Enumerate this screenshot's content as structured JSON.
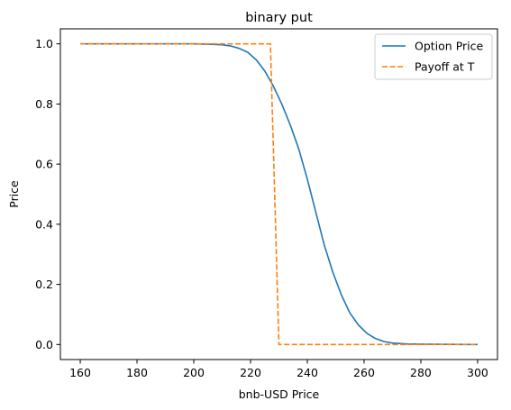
{
  "chart_data": {
    "type": "line",
    "title": "binary put",
    "xlabel": "bnb-USD Price",
    "ylabel": "Price",
    "xlim": [
      153,
      307
    ],
    "ylim": [
      -0.05,
      1.05
    ],
    "xticks": [
      160,
      180,
      200,
      220,
      240,
      260,
      280,
      300
    ],
    "yticks": [
      0.0,
      0.2,
      0.4,
      0.6,
      0.8,
      1.0
    ],
    "xtick_labels": [
      "160",
      "180",
      "200",
      "220",
      "240",
      "260",
      "280",
      "300"
    ],
    "ytick_labels": [
      "0.0",
      "0.2",
      "0.4",
      "0.6",
      "0.8",
      "1.0"
    ],
    "grid": false,
    "legend_position": "top-right",
    "series": [
      {
        "name": "Option Price",
        "color": "#1f77b4",
        "dash": "solid",
        "x": [
          160,
          180,
          200,
          205,
          210,
          213,
          216,
          219,
          222,
          225,
          228,
          231,
          234,
          237,
          240,
          243,
          246,
          249,
          252,
          255,
          258,
          261,
          264,
          267,
          270,
          275,
          280,
          300
        ],
        "y": [
          1.0,
          1.0,
          1.0,
          0.999,
          0.997,
          0.993,
          0.985,
          0.972,
          0.947,
          0.91,
          0.86,
          0.8,
          0.73,
          0.65,
          0.55,
          0.44,
          0.33,
          0.24,
          0.165,
          0.105,
          0.065,
          0.037,
          0.02,
          0.01,
          0.005,
          0.002,
          0.001,
          0.0
        ]
      },
      {
        "name": "Payoff at T",
        "color": "#ff7f0e",
        "dash": "dashed",
        "x": [
          160,
          227,
          230,
          300
        ],
        "y": [
          1.0,
          1.0,
          0.0,
          0.0
        ]
      }
    ]
  }
}
